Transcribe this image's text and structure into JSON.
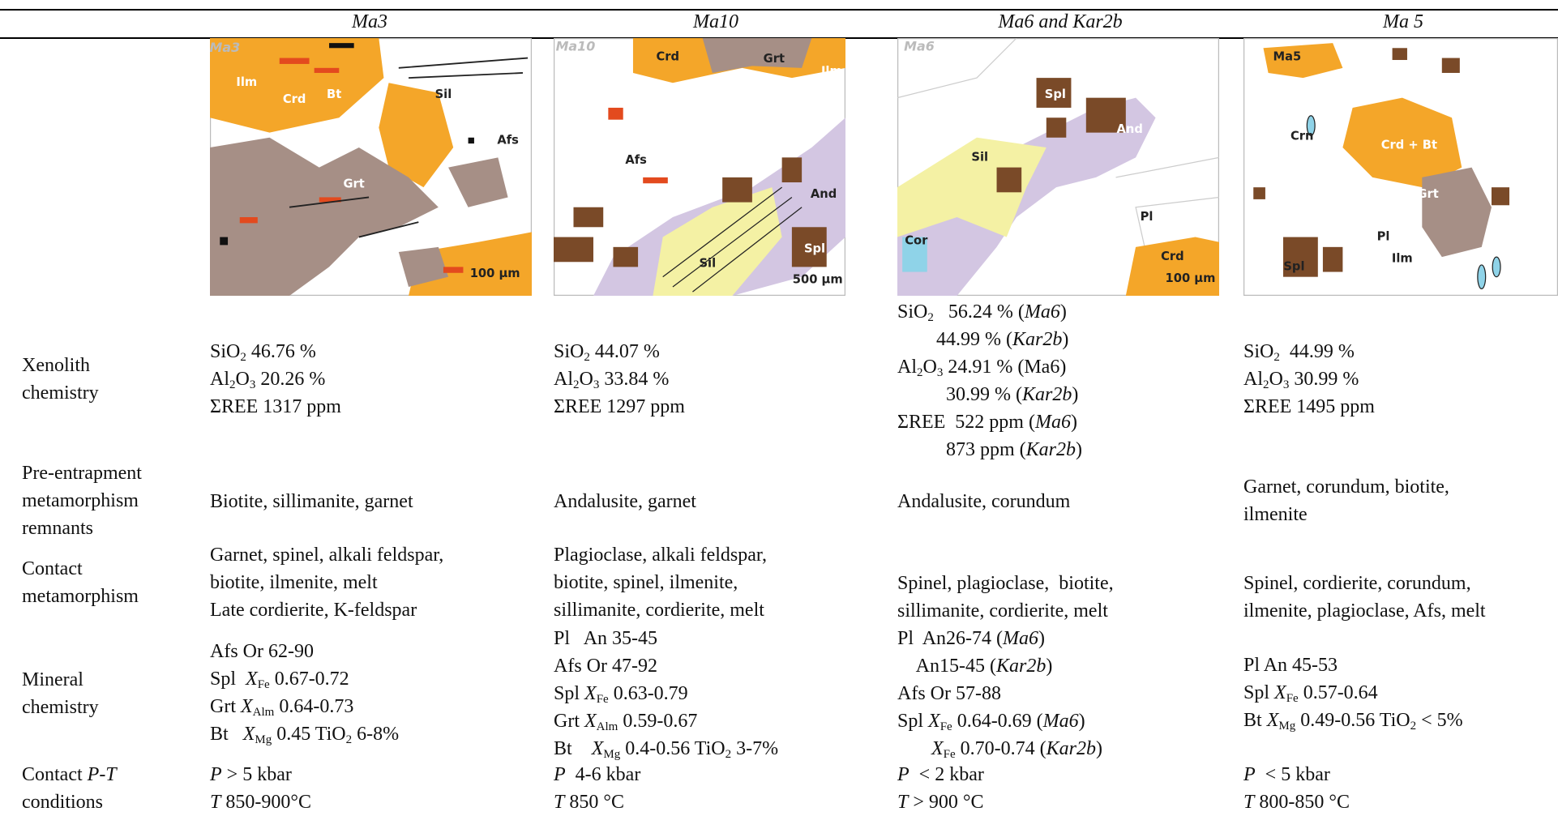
{
  "table": {
    "columns": [
      "Ma3",
      "Ma10",
      "Ma6 and Kar2b",
      "Ma 5"
    ],
    "rows": [
      {
        "label": [
          [
            "Xenolith"
          ],
          [
            "chemistry"
          ]
        ],
        "cells": [
          [
            [
              "SiO",
              {
                "sub": "2"
              },
              " 46.76 %"
            ],
            [
              "Al",
              {
                "sub": "2"
              },
              "O",
              {
                "sub": "3"
              },
              " 20.26 %"
            ],
            [
              "ΣREE 1317 ppm"
            ]
          ],
          [
            [
              "SiO",
              {
                "sub": "2"
              },
              " 44.07 %"
            ],
            [
              "Al",
              {
                "sub": "2"
              },
              "O",
              {
                "sub": "3"
              },
              " 33.84 %"
            ],
            [
              "ΣREE 1297 ppm"
            ]
          ],
          [
            [
              "SiO",
              {
                "sub": "2"
              },
              "   56.24 % (",
              {
                "i": "Ma6"
              },
              ")"
            ],
            [
              "        44.99 % (",
              {
                "i": "Kar2b"
              },
              ")"
            ],
            [
              "Al",
              {
                "sub": "2"
              },
              "O",
              {
                "sub": "3"
              },
              " 24.91 % (Ma6)"
            ],
            [
              "          30.99 % (",
              {
                "i": "Kar2b"
              },
              ")"
            ],
            [
              "ΣREE  522 ppm (",
              {
                "i": "Ma6"
              },
              ")"
            ],
            [
              "          873 ppm (",
              {
                "i": "Kar2b"
              },
              ")"
            ]
          ],
          [
            [
              "SiO",
              {
                "sub": "2"
              },
              "  44.99 %"
            ],
            [
              "Al",
              {
                "sub": "2"
              },
              "O",
              {
                "sub": "3"
              },
              " 30.99 %"
            ],
            [
              "ΣREE 1495 ppm"
            ]
          ]
        ]
      },
      {
        "label": [
          [
            "Pre-entrapment"
          ],
          [
            "metamorphism"
          ],
          [
            "remnants"
          ]
        ],
        "cells": [
          [
            [
              "Biotite, sillimanite, garnet"
            ]
          ],
          [
            [
              "Andalusite, garnet"
            ]
          ],
          [
            [
              "Andalusite, corundum"
            ]
          ],
          [
            [
              "Garnet, corundum, biotite,"
            ],
            [
              "ilmenite"
            ]
          ]
        ]
      },
      {
        "label": [
          [
            "Contact"
          ],
          [
            "metamorphism"
          ]
        ],
        "cells": [
          [
            [
              "Garnet, spinel, alkali feldspar,"
            ],
            [
              "biotite, ilmenite, melt"
            ],
            [
              "Late cordierite, K-feldspar"
            ]
          ],
          [
            [
              "Plagioclase, alkali feldspar,"
            ],
            [
              "biotite, spinel, ilmenite,"
            ],
            [
              "sillimanite, cordierite, melt"
            ]
          ],
          [
            [
              "Spinel, plagioclase,  biotite,"
            ],
            [
              "sillimanite, cordierite, melt"
            ]
          ],
          [
            [
              "Spinel, cordierite, corundum,"
            ],
            [
              "ilmenite, plagioclase, Afs, melt"
            ]
          ]
        ]
      },
      {
        "label": [
          [
            "Mineral"
          ],
          [
            "chemistry"
          ]
        ],
        "cells": [
          [
            [
              "Afs Or 62-90"
            ],
            [
              "Spl  ",
              {
                "i": "X"
              },
              {
                "sub": "Fe"
              },
              " 0.67-0.72"
            ],
            [
              "Grt ",
              {
                "i": "X"
              },
              {
                "sub": "Alm"
              },
              " 0.64-0.73"
            ],
            [
              "Bt   ",
              {
                "i": "X"
              },
              {
                "sub": "Mg"
              },
              " 0.45 TiO",
              {
                "sub": "2"
              },
              " 6-8%"
            ]
          ],
          [
            [
              "Pl   An 35-45"
            ],
            [
              "Afs Or 47-92"
            ],
            [
              "Spl ",
              {
                "i": "X"
              },
              {
                "sub": "Fe"
              },
              " 0.63-0.79"
            ],
            [
              "Grt ",
              {
                "i": "X"
              },
              {
                "sub": "Alm"
              },
              " 0.59-0.67"
            ],
            [
              "Bt    ",
              {
                "i": "X"
              },
              {
                "sub": "Mg"
              },
              " 0.4-0.56 TiO",
              {
                "sub": "2"
              },
              " 3-7%"
            ]
          ],
          [
            [
              "Pl  An26-74 (",
              {
                "i": "Ma6"
              },
              ")"
            ],
            [
              "    An15-45 (",
              {
                "i": "Kar2b"
              },
              ")"
            ],
            [
              "Afs Or 57-88"
            ],
            [
              "Spl ",
              {
                "i": "X"
              },
              {
                "sub": "Fe"
              },
              " 0.64-0.69 (",
              {
                "i": "Ma6"
              },
              ")"
            ],
            [
              "       ",
              {
                "i": "X"
              },
              {
                "sub": "Fe"
              },
              " 0.70-0.74 (",
              {
                "i": "Kar2b"
              },
              ")"
            ]
          ],
          [
            [
              "Pl An 45-53"
            ],
            [
              "Spl ",
              {
                "i": "X"
              },
              {
                "sub": "Fe"
              },
              " 0.57-0.64"
            ],
            [
              "Bt ",
              {
                "i": "X"
              },
              {
                "sub": "Mg"
              },
              " 0.49-0.56 TiO",
              {
                "sub": "2"
              },
              " < 5%"
            ]
          ]
        ]
      },
      {
        "label": [
          [
            "Contact ",
            {
              "i": "P-T"
            }
          ],
          [
            "conditions"
          ]
        ],
        "cells": [
          [
            [
              {
                "i": "P"
              },
              " > 5 kbar"
            ],
            [
              {
                "i": "T"
              },
              " 850-900°C"
            ]
          ],
          [
            [
              {
                "i": "P"
              },
              "  4-6 kbar"
            ],
            [
              {
                "i": "T"
              },
              " 850 °C"
            ]
          ],
          [
            [
              {
                "i": "P"
              },
              "  < 2 kbar"
            ],
            [
              {
                "i": "T"
              },
              " > 900 °C"
            ]
          ],
          [
            [
              {
                "i": "P"
              },
              "  < 5 kbar"
            ],
            [
              {
                "i": "T"
              },
              " 800-850 °C"
            ]
          ]
        ]
      }
    ]
  },
  "images": [
    {
      "labels": [
        "Ma3",
        "Ilm",
        "Bt",
        "Crd",
        "Sil",
        "Afs",
        "Grt",
        "100 µm"
      ]
    },
    {
      "labels": [
        "Ma10",
        "Crd",
        "Grt",
        "Ilm",
        "Afs",
        "And",
        "Sil",
        "Spl",
        "500 µm"
      ]
    },
    {
      "labels": [
        "Ma6",
        "Spl",
        "And",
        "Sil",
        "Pl",
        "Cor",
        "Crd",
        "100 µm"
      ]
    },
    {
      "labels": [
        "Ma5",
        "Crn",
        "Crd + Bt",
        "Grt",
        "Pl",
        "Ilm",
        "Spl"
      ]
    }
  ]
}
